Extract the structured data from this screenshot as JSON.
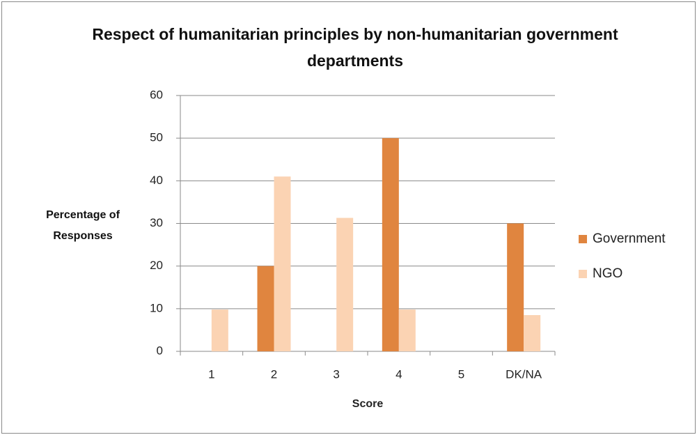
{
  "chart_data": {
    "type": "bar",
    "title": "Respect of humanitarian principles by non-humanitarian government departments",
    "x_label": "Score",
    "y_label": "Percentage of Responses",
    "categories": [
      "1",
      "2",
      "3",
      "4",
      "5",
      "DK/NA"
    ],
    "series": [
      {
        "name": "Government",
        "color": "#e0853f",
        "values": [
          0,
          20,
          0,
          50,
          0,
          30
        ]
      },
      {
        "name": "NGO",
        "color": "#fbd3b3",
        "values": [
          9.8,
          41,
          31.3,
          9.8,
          0,
          8.5
        ]
      }
    ],
    "ylim": [
      0,
      60
    ],
    "yticks": [
      0,
      10,
      20,
      30,
      40,
      50,
      60
    ],
    "grid": true,
    "legend": "right"
  }
}
